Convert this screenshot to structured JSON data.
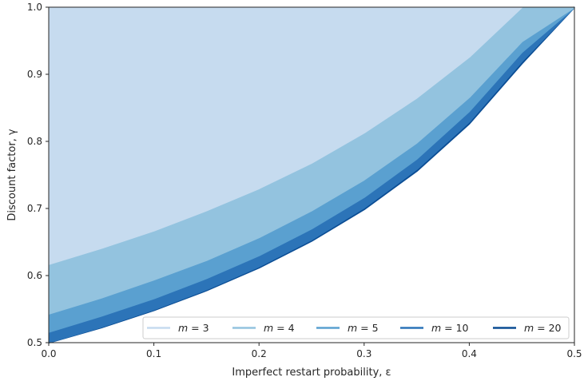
{
  "chart_data": {
    "type": "area",
    "xlabel": "Imperfect restart probability, ε",
    "ylabel": "Discount factor, γ",
    "xlim": [
      0.0,
      0.5
    ],
    "ylim": [
      0.5,
      1.0
    ],
    "xticks": [
      0.0,
      0.1,
      0.2,
      0.3,
      0.4,
      0.5
    ],
    "xtick_labels": [
      "0.0",
      "0.1",
      "0.2",
      "0.3",
      "0.4",
      "0.5"
    ],
    "yticks": [
      0.5,
      0.6,
      0.7,
      0.8,
      0.9,
      1.0
    ],
    "ytick_labels": [
      "0.5",
      "0.6",
      "0.7",
      "0.8",
      "0.9",
      "1.0"
    ],
    "grid": false,
    "legend": {
      "location": "lower right",
      "columns": 5
    },
    "fill_region": "above each curve up to γ = 1.0",
    "x": [
      0.0,
      0.05,
      0.1,
      0.15,
      0.2,
      0.25,
      0.3,
      0.35,
      0.4,
      0.45,
      0.5
    ],
    "series": [
      {
        "name": "m = 3",
        "m_value": "3",
        "color": "#c6dbef",
        "values": [
          0.617,
          0.641,
          0.667,
          0.697,
          0.73,
          0.768,
          0.813,
          0.865,
          0.926,
          1.0,
          null
        ]
      },
      {
        "name": "m = 4",
        "m_value": "4",
        "color": "#93c3df",
        "values": [
          0.543,
          0.567,
          0.594,
          0.623,
          0.657,
          0.697,
          0.743,
          0.798,
          0.866,
          0.949,
          1.0
        ]
      },
      {
        "name": "m = 5",
        "m_value": "5",
        "color": "#5aa0d0",
        "values": [
          0.516,
          0.54,
          0.566,
          0.596,
          0.63,
          0.67,
          0.717,
          0.774,
          0.845,
          0.933,
          1.0
        ]
      },
      {
        "name": "m = 10",
        "m_value": "10",
        "color": "#2c74b8",
        "values": [
          0.5005,
          0.5235,
          0.5495,
          0.5793,
          0.6136,
          0.6537,
          0.7012,
          0.7586,
          0.8294,
          0.9193,
          1.0
        ]
      },
      {
        "name": "m = 20",
        "m_value": "20",
        "color": "#0b4d94",
        "values": [
          0.5,
          0.5225,
          0.5483,
          0.5778,
          0.6118,
          0.6516,
          0.6987,
          0.7558,
          0.8264,
          0.9161,
          1.0
        ]
      }
    ]
  }
}
